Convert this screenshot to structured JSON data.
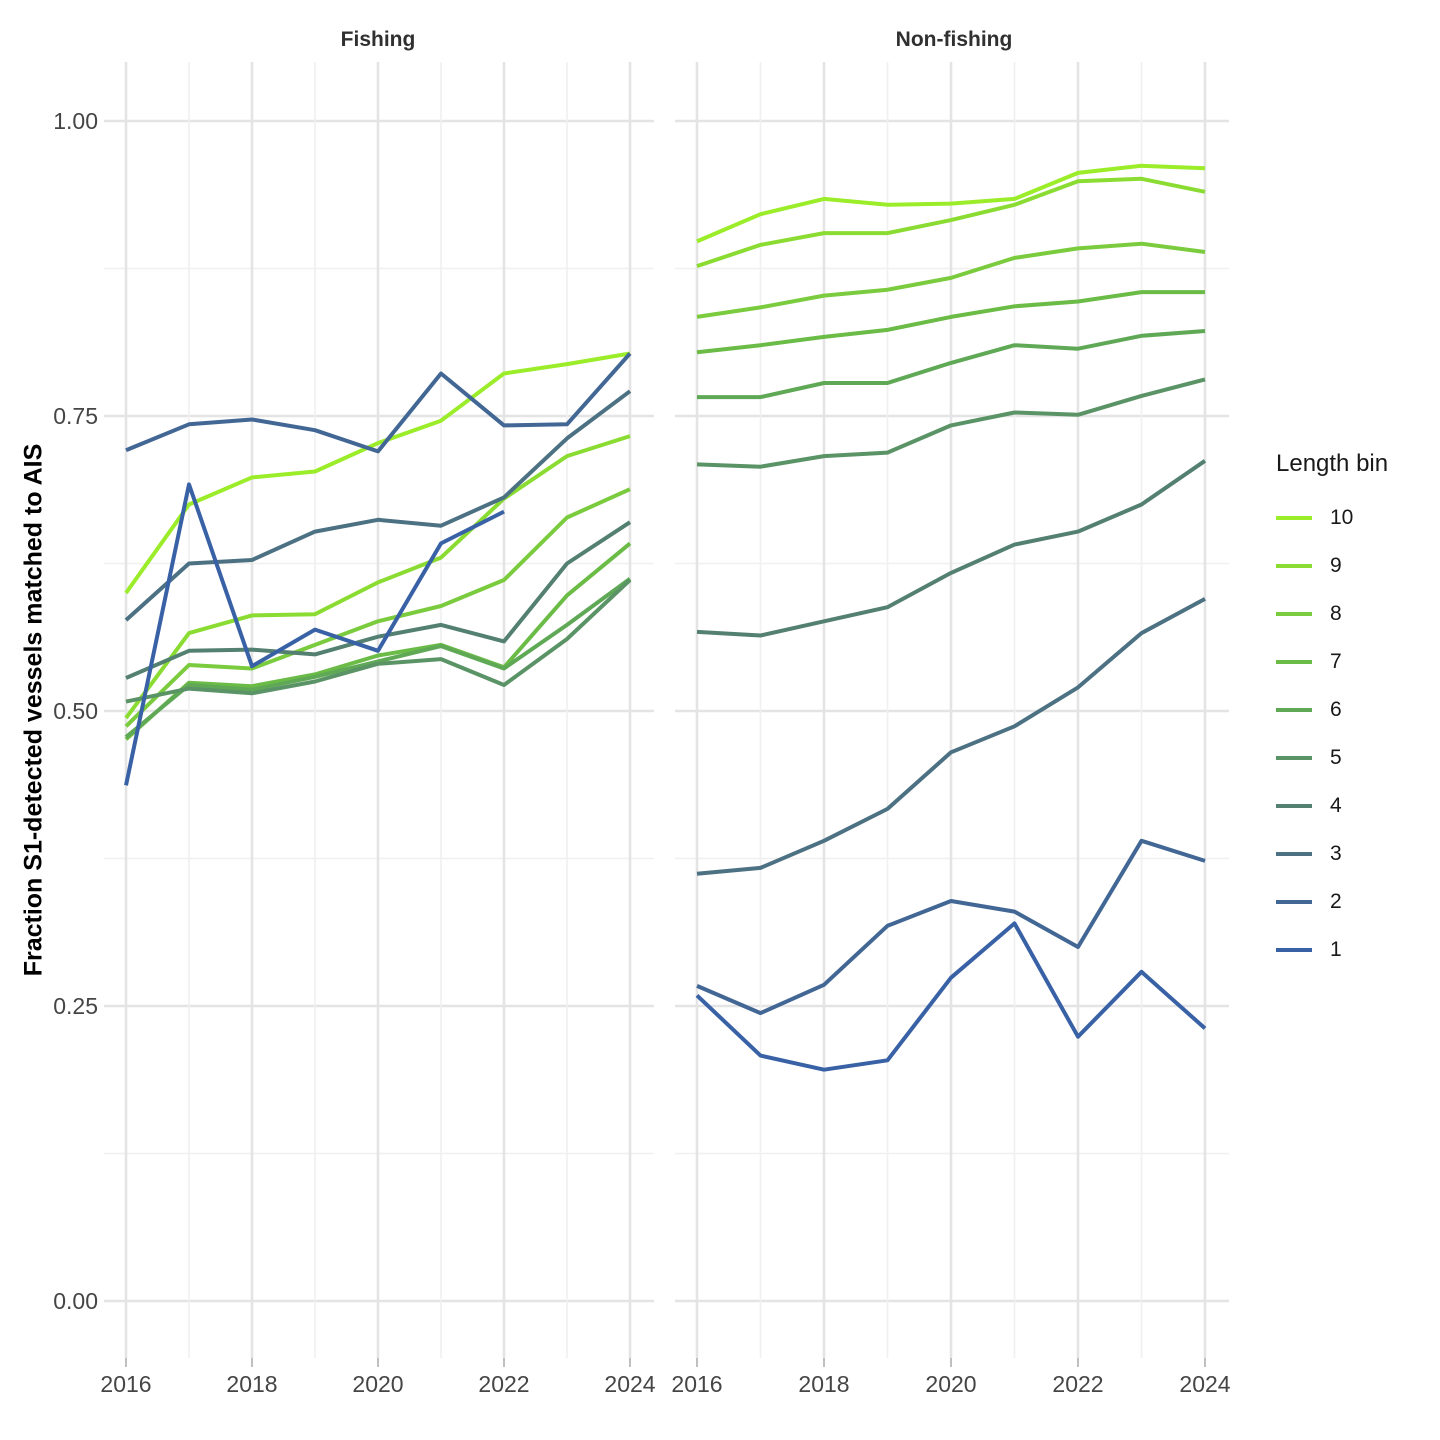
{
  "chart_data": {
    "type": "line",
    "facet_layout": "two panels side by side, shared y axis",
    "x": [
      2016,
      2017,
      2018,
      2019,
      2020,
      2021,
      2022,
      2023,
      2024
    ],
    "x_ticks": [
      2016,
      2018,
      2020,
      2022,
      2024
    ],
    "x_tick_labels": [
      "2016",
      "2018",
      "2020",
      "2022",
      "2024"
    ],
    "y_ticks": [
      0,
      0.25,
      0.5,
      0.75,
      1.0
    ],
    "y_minor_ticks": [
      0.125,
      0.375,
      0.625,
      0.875
    ],
    "y_tick_labels": [
      "0.00",
      "0.25",
      "0.50",
      "0.75",
      "1.00"
    ],
    "ylim": [
      0,
      1
    ],
    "grid": true,
    "ylabel": "Fraction S1-detected vessels matched to AIS",
    "legend": {
      "title": "Length bin",
      "position": "right",
      "items": [
        {
          "label": "10",
          "color": "#9BEC29"
        },
        {
          "label": "9",
          "color": "#8BDC32"
        },
        {
          "label": "8",
          "color": "#7ACB3D"
        },
        {
          "label": "7",
          "color": "#6BBB47"
        },
        {
          "label": "6",
          "color": "#5FA956"
        },
        {
          "label": "5",
          "color": "#5A9365"
        },
        {
          "label": "4",
          "color": "#538070"
        },
        {
          "label": "3",
          "color": "#4C7183"
        },
        {
          "label": "2",
          "color": "#426795"
        },
        {
          "label": "1",
          "color": "#3961A5"
        }
      ]
    },
    "facets": [
      {
        "title": "Fishing",
        "series": [
          {
            "bin": "10",
            "color": "#9BEC29",
            "values": [
              0.6,
              0.675,
              0.698,
              0.703,
              0.727,
              0.746,
              0.786,
              0.794,
              0.803
            ]
          },
          {
            "bin": "9",
            "color": "#8BDC32",
            "values": [
              0.494,
              0.566,
              0.581,
              0.582,
              0.609,
              0.63,
              0.68,
              0.716,
              0.733
            ]
          },
          {
            "bin": "8",
            "color": "#7ACB3D",
            "values": [
              0.487,
              0.539,
              0.536,
              0.556,
              0.576,
              0.589,
              0.611,
              0.664,
              0.688
            ]
          },
          {
            "bin": "7",
            "color": "#6BBB47",
            "values": [
              0.476,
              0.524,
              0.521,
              0.531,
              0.547,
              0.556,
              0.537,
              0.598,
              0.642
            ]
          },
          {
            "bin": "6",
            "color": "#5FA956",
            "values": [
              0.478,
              0.522,
              0.518,
              0.529,
              0.542,
              0.555,
              0.536,
              0.573,
              0.612
            ]
          },
          {
            "bin": "5",
            "color": "#5A9365",
            "values": [
              0.508,
              0.519,
              0.515,
              0.525,
              0.54,
              0.544,
              0.522,
              0.561,
              0.611
            ]
          },
          {
            "bin": "4",
            "color": "#538070",
            "values": [
              0.528,
              0.551,
              0.552,
              0.548,
              0.563,
              0.573,
              0.559,
              0.625,
              0.66
            ]
          },
          {
            "bin": "3",
            "color": "#4C7183",
            "values": [
              0.577,
              0.625,
              0.628,
              0.652,
              0.662,
              0.657,
              0.681,
              0.731,
              0.771
            ]
          },
          {
            "bin": "2",
            "color": "#426795",
            "values": [
              0.721,
              0.743,
              0.747,
              0.738,
              0.72,
              0.786,
              0.742,
              0.743,
              0.803
            ]
          },
          {
            "bin": "1",
            "color": "#3961A5",
            "values": [
              0.437,
              0.692,
              0.538,
              0.569,
              0.551,
              0.642,
              0.669,
              null,
              null
            ]
          }
        ]
      },
      {
        "title": "Non-fishing",
        "series": [
          {
            "bin": "10",
            "color": "#9BEC29",
            "values": [
              0.898,
              0.921,
              0.934,
              0.929,
              0.93,
              0.934,
              0.956,
              0.962,
              0.96
            ]
          },
          {
            "bin": "9",
            "color": "#8BDC32",
            "values": [
              0.877,
              0.895,
              0.905,
              0.905,
              0.916,
              0.929,
              0.949,
              0.951,
              0.94
            ]
          },
          {
            "bin": "8",
            "color": "#7ACB3D",
            "values": [
              0.834,
              0.842,
              0.852,
              0.857,
              0.867,
              0.884,
              0.892,
              0.896,
              0.889
            ]
          },
          {
            "bin": "7",
            "color": "#6BBB47",
            "values": [
              0.804,
              0.81,
              0.817,
              0.823,
              0.834,
              0.843,
              0.847,
              0.855,
              0.855
            ]
          },
          {
            "bin": "6",
            "color": "#5FA956",
            "values": [
              0.766,
              0.766,
              0.778,
              0.778,
              0.795,
              0.81,
              0.807,
              0.818,
              0.822
            ]
          },
          {
            "bin": "5",
            "color": "#5A9365",
            "values": [
              0.709,
              0.707,
              0.716,
              0.719,
              0.742,
              0.753,
              0.751,
              0.767,
              0.781
            ]
          },
          {
            "bin": "4",
            "color": "#538070",
            "values": [
              0.567,
              0.564,
              0.576,
              0.588,
              0.617,
              0.641,
              0.652,
              0.675,
              0.712
            ]
          },
          {
            "bin": "3",
            "color": "#4C7183",
            "values": [
              0.362,
              0.367,
              0.39,
              0.417,
              0.465,
              0.487,
              0.52,
              0.566,
              0.595
            ]
          },
          {
            "bin": "2",
            "color": "#426795",
            "values": [
              0.267,
              0.244,
              0.268,
              0.318,
              0.339,
              0.33,
              0.3,
              0.39,
              0.373
            ]
          },
          {
            "bin": "1",
            "color": "#3961A5",
            "values": [
              0.259,
              0.208,
              0.196,
              0.204,
              0.274,
              0.32,
              0.224,
              0.279,
              0.231
            ]
          }
        ]
      }
    ]
  }
}
